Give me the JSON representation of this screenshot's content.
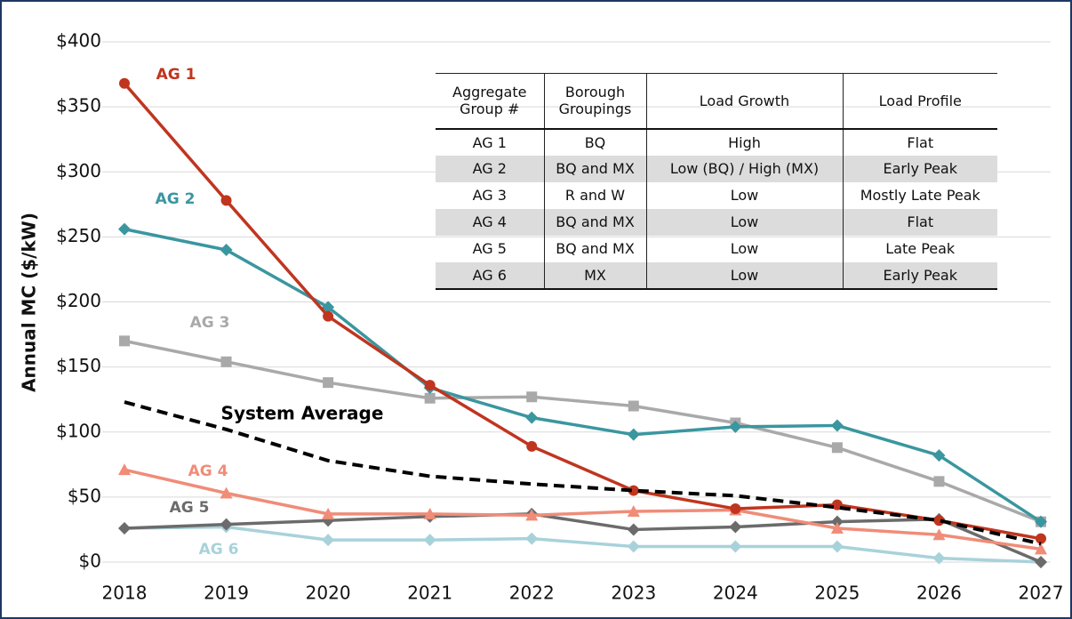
{
  "chart_data": {
    "type": "line",
    "y_label": "Annual MC ($/kW)",
    "categories": [
      "2018",
      "2019",
      "2020",
      "2021",
      "2022",
      "2023",
      "2024",
      "2025",
      "2026",
      "2027"
    ],
    "ylim": [
      0,
      400
    ],
    "yticks": [
      {
        "value": 0,
        "label": "$0"
      },
      {
        "value": 50,
        "label": "$50"
      },
      {
        "value": 100,
        "label": "$100"
      },
      {
        "value": 150,
        "label": "$150"
      },
      {
        "value": 200,
        "label": "$200"
      },
      {
        "value": 250,
        "label": "$250"
      },
      {
        "value": 300,
        "label": "$300"
      },
      {
        "value": 350,
        "label": "$350"
      },
      {
        "value": 400,
        "label": "$400"
      }
    ],
    "grid": true,
    "series": [
      {
        "name": "AG 1",
        "color": "#c0351f",
        "marker": "circle",
        "values": [
          368,
          278,
          189,
          136,
          89,
          55,
          41,
          44,
          32,
          18
        ]
      },
      {
        "name": "AG 2",
        "color": "#3a969f",
        "marker": "diamond",
        "values": [
          256,
          240,
          196,
          134,
          111,
          98,
          104,
          105,
          82,
          31
        ]
      },
      {
        "name": "AG 3",
        "color": "#a9a9a9",
        "marker": "square",
        "values": [
          170,
          154,
          138,
          126,
          127,
          120,
          107,
          88,
          62,
          31
        ]
      },
      {
        "name": "System Average",
        "color": "#000000",
        "dashed": true,
        "values": [
          123,
          102,
          78,
          66,
          60,
          55,
          51,
          42,
          32,
          14
        ]
      },
      {
        "name": "AG 4",
        "color": "#f08c78",
        "marker": "triangle",
        "values": [
          71,
          53,
          37,
          37,
          36,
          39,
          40,
          26,
          21,
          10
        ]
      },
      {
        "name": "AG 5",
        "color": "#6b6b6b",
        "marker": "diamond",
        "values": [
          26,
          29,
          32,
          35,
          37,
          25,
          27,
          31,
          33,
          0
        ]
      },
      {
        "name": "AG 6",
        "color": "#a8d2da",
        "marker": "diamond",
        "values": [
          26,
          27,
          17,
          17,
          18,
          12,
          12,
          12,
          3,
          0
        ]
      }
    ]
  },
  "table": {
    "columns": [
      "Aggregate Group #",
      "Borough Groupings",
      "Load Growth",
      "Load Profile"
    ],
    "rows": [
      [
        "AG 1",
        "BQ",
        "High",
        "Flat"
      ],
      [
        "AG 2",
        "BQ and MX",
        "Low (BQ) / High (MX)",
        "Early Peak"
      ],
      [
        "AG 3",
        "R and W",
        "Low",
        "Mostly Late Peak"
      ],
      [
        "AG 4",
        "BQ and MX",
        "Low",
        "Flat"
      ],
      [
        "AG 5",
        "BQ and MX",
        "Low",
        "Late Peak"
      ],
      [
        "AG 6",
        "MX",
        "Low",
        "Early Peak"
      ]
    ]
  }
}
